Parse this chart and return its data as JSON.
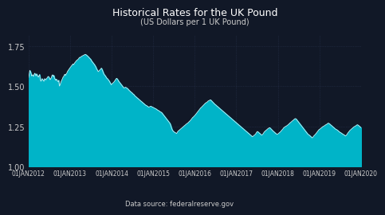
{
  "title": "Historical Rates for the UK Pound",
  "subtitle": "(US Dollars per 1 UK Pound)",
  "datasource": "Data source: federalreserve.gov",
  "background_color": "#111827",
  "plot_bg_color": "#111827",
  "fill_color": "#00b4c8",
  "line_color": "#ccf0f5",
  "title_color": "#ffffff",
  "subtitle_color": "#cccccc",
  "tick_label_color": "#cccccc",
  "grid_color": "#2a3550",
  "ylim": [
    1.0,
    1.82
  ],
  "yticks": [
    1.0,
    1.25,
    1.5,
    1.75
  ],
  "xtick_labels": [
    "01JAN2012",
    "01JAN2013",
    "01JAN2014",
    "01JAN2015",
    "01JAN2016",
    "01JAN2017",
    "01JAN2018",
    "01JAN2019",
    "01JAN2020"
  ],
  "series": [
    1.554,
    1.572,
    1.6,
    1.592,
    1.582,
    1.565,
    1.572,
    1.568,
    1.562,
    1.575,
    1.582,
    1.575,
    1.565,
    1.578,
    1.57,
    1.562,
    1.558,
    1.567,
    1.574,
    1.545,
    1.532,
    1.538,
    1.548,
    1.542,
    1.536,
    1.532,
    1.548,
    1.544,
    1.54,
    1.548,
    1.552,
    1.558,
    1.562,
    1.558,
    1.55,
    1.542,
    1.548,
    1.554,
    1.568,
    1.572,
    1.562,
    1.568,
    1.552,
    1.545,
    1.538,
    1.545,
    1.54,
    1.532,
    1.53,
    1.538,
    1.502,
    1.508,
    1.52,
    1.532,
    1.54,
    1.548,
    1.558,
    1.562,
    1.572,
    1.575,
    1.568,
    1.578,
    1.582,
    1.592,
    1.598,
    1.605,
    1.61,
    1.615,
    1.62,
    1.625,
    1.63,
    1.635,
    1.64,
    1.635,
    1.642,
    1.648,
    1.652,
    1.658,
    1.662,
    1.665,
    1.668,
    1.672,
    1.678,
    1.682,
    1.68,
    1.685,
    1.688,
    1.69,
    1.692,
    1.694,
    1.696,
    1.698,
    1.7,
    1.698,
    1.695,
    1.692,
    1.688,
    1.685,
    1.68,
    1.676,
    1.672,
    1.668,
    1.66,
    1.655,
    1.65,
    1.645,
    1.64,
    1.635,
    1.628,
    1.622,
    1.612,
    1.605,
    1.598,
    1.592,
    1.596,
    1.6,
    1.605,
    1.608,
    1.614,
    1.608,
    1.598,
    1.588,
    1.578,
    1.572,
    1.568,
    1.562,
    1.555,
    1.55,
    1.548,
    1.542,
    1.538,
    1.532,
    1.525,
    1.518,
    1.51,
    1.515,
    1.518,
    1.522,
    1.526,
    1.53,
    1.536,
    1.542,
    1.548,
    1.55,
    1.545,
    1.54,
    1.532,
    1.528,
    1.522,
    1.518,
    1.512,
    1.508,
    1.502,
    1.498,
    1.492,
    1.49,
    1.492,
    1.495,
    1.492,
    1.49,
    1.488,
    1.484,
    1.48,
    1.475,
    1.472,
    1.468,
    1.464,
    1.462,
    1.458,
    1.454,
    1.45,
    1.448,
    1.442,
    1.438,
    1.435,
    1.432,
    1.428,
    1.425,
    1.422,
    1.418,
    1.415,
    1.412,
    1.408,
    1.405,
    1.402,
    1.398,
    1.395,
    1.392,
    1.388,
    1.385,
    1.382,
    1.38,
    1.378,
    1.375,
    1.372,
    1.37,
    1.372,
    1.374,
    1.376,
    1.374,
    1.372,
    1.37,
    1.368,
    1.366,
    1.364,
    1.362,
    1.36,
    1.358,
    1.355,
    1.352,
    1.35,
    1.348,
    1.345,
    1.342,
    1.34,
    1.338,
    1.335,
    1.33,
    1.325,
    1.32,
    1.315,
    1.31,
    1.305,
    1.3,
    1.295,
    1.29,
    1.285,
    1.28,
    1.275,
    1.27,
    1.262,
    1.25,
    1.238,
    1.228,
    1.222,
    1.218,
    1.215,
    1.212,
    1.21,
    1.208,
    1.205,
    1.212,
    1.218,
    1.222,
    1.225,
    1.228,
    1.232,
    1.235,
    1.238,
    1.242,
    1.245,
    1.248,
    1.252,
    1.255,
    1.258,
    1.262,
    1.265,
    1.268,
    1.27,
    1.274,
    1.278,
    1.282,
    1.285,
    1.29,
    1.295,
    1.3,
    1.305,
    1.308,
    1.312,
    1.316,
    1.32,
    1.325,
    1.33,
    1.335,
    1.34,
    1.345,
    1.35,
    1.355,
    1.36,
    1.365,
    1.368,
    1.372,
    1.376,
    1.38,
    1.384,
    1.388,
    1.392,
    1.396,
    1.398,
    1.4,
    1.404,
    1.408,
    1.41,
    1.412,
    1.414,
    1.416,
    1.412,
    1.408,
    1.404,
    1.4,
    1.396,
    1.392,
    1.388,
    1.385,
    1.382,
    1.378,
    1.375,
    1.372,
    1.368,
    1.365,
    1.362,
    1.358,
    1.355,
    1.352,
    1.348,
    1.345,
    1.342,
    1.338,
    1.335,
    1.332,
    1.328,
    1.325,
    1.322,
    1.318,
    1.315,
    1.312,
    1.308,
    1.305,
    1.302,
    1.298,
    1.295,
    1.292,
    1.288,
    1.285,
    1.282,
    1.278,
    1.275,
    1.272,
    1.268,
    1.265,
    1.262,
    1.258,
    1.255,
    1.252,
    1.248,
    1.245,
    1.242,
    1.238,
    1.235,
    1.232,
    1.228,
    1.225,
    1.222,
    1.218,
    1.215,
    1.212,
    1.208,
    1.205,
    1.202,
    1.198,
    1.195,
    1.192,
    1.188,
    1.185,
    1.188,
    1.192,
    1.195,
    1.198,
    1.202,
    1.208,
    1.214,
    1.218,
    1.215,
    1.212,
    1.208,
    1.205,
    1.202,
    1.198,
    1.195,
    1.198,
    1.202,
    1.208,
    1.214,
    1.218,
    1.222,
    1.225,
    1.228,
    1.232,
    1.235,
    1.238,
    1.24,
    1.242,
    1.238,
    1.234,
    1.23,
    1.226,
    1.222,
    1.218,
    1.215,
    1.212,
    1.208,
    1.205,
    1.202,
    1.2,
    1.202,
    1.205,
    1.208,
    1.212,
    1.215,
    1.218,
    1.225,
    1.228,
    1.232,
    1.238,
    1.242,
    1.245,
    1.248,
    1.25,
    1.252,
    1.255,
    1.258,
    1.26,
    1.265,
    1.268,
    1.272,
    1.275,
    1.278,
    1.282,
    1.285,
    1.288,
    1.292,
    1.295,
    1.298,
    1.298,
    1.295,
    1.29,
    1.285,
    1.28,
    1.275,
    1.27,
    1.265,
    1.26,
    1.255,
    1.25,
    1.245,
    1.24,
    1.235,
    1.23,
    1.225,
    1.22,
    1.215,
    1.21,
    1.205,
    1.2,
    1.198,
    1.195,
    1.192,
    1.188,
    1.185,
    1.18,
    1.178,
    1.182,
    1.188,
    1.192,
    1.196,
    1.2,
    1.205,
    1.21,
    1.215,
    1.22,
    1.225,
    1.23,
    1.232,
    1.235,
    1.238,
    1.242,
    1.245,
    1.248,
    1.25,
    1.252,
    1.255,
    1.258,
    1.26,
    1.262,
    1.265,
    1.268,
    1.27,
    1.268,
    1.265,
    1.262,
    1.258,
    1.255,
    1.252,
    1.248,
    1.245,
    1.242,
    1.238,
    1.235,
    1.232,
    1.23,
    1.228,
    1.225,
    1.222,
    1.218,
    1.215,
    1.212,
    1.21,
    1.208,
    1.205,
    1.202,
    1.2,
    1.198,
    1.195,
    1.192,
    1.19,
    1.195,
    1.198,
    1.205,
    1.21,
    1.215,
    1.22,
    1.225,
    1.228,
    1.232,
    1.235,
    1.238,
    1.242,
    1.245,
    1.248,
    1.25,
    1.252,
    1.255,
    1.258,
    1.26,
    1.258,
    1.255,
    1.252,
    1.248,
    1.245,
    1.242
  ]
}
